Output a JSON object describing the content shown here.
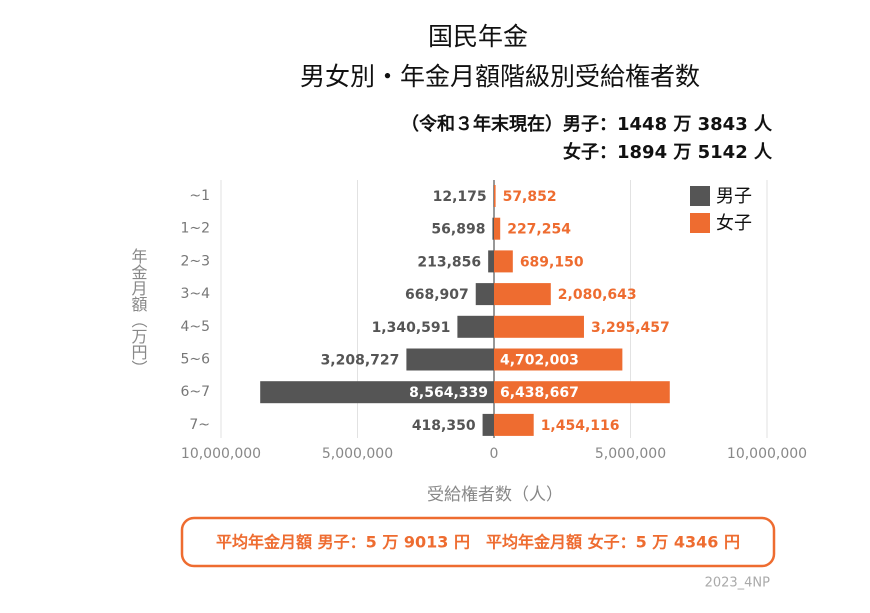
{
  "chart_data": {
    "type": "butterfly-bar",
    "title": [
      "国民年金",
      "男女別・年金月額階級別受給権者数"
    ],
    "subtitle": [
      "（令和３年末現在）男子：1448 万 3843 人",
      "女子：1894 万 5142 人"
    ],
    "y_label": "年金月額（万円）",
    "x_label": "受給権者数（人）",
    "categories": [
      "~1",
      "1~2",
      "2~3",
      "3~4",
      "4~5",
      "5~6",
      "6~7",
      "7~"
    ],
    "series": [
      {
        "name": "男子",
        "color": "#555555",
        "side": "left",
        "values": [
          12175,
          56898,
          213856,
          668907,
          1340591,
          3208727,
          8564339,
          418350
        ],
        "value_labels": [
          "12,175",
          "56,898",
          "213,856",
          "668,907",
          "1,340,591",
          "3,208,727",
          "8,564,339",
          "418,350"
        ]
      },
      {
        "name": "女子",
        "color": "#ee6c30",
        "side": "right",
        "values": [
          57852,
          227254,
          689150,
          2080643,
          3295457,
          4702003,
          6438667,
          1454116
        ],
        "value_labels": [
          "57,852",
          "227,254",
          "689,150",
          "2,080,643",
          "3,295,457",
          "4,702,003",
          "6,438,667",
          "1,454,116"
        ]
      }
    ],
    "xlim": [
      0,
      10000000
    ],
    "xticks": [
      0,
      {
        "value": 5000000,
        "label": "5,000,000"
      },
      {
        "value": 10000000,
        "label": "10,000,000"
      }
    ],
    "grid": true,
    "legend": "top-right",
    "footer": "平均年金月額 男子：5 万 9013 円　平均年金月額 女子：5 万 4346 円",
    "source": "2023_4NP"
  }
}
